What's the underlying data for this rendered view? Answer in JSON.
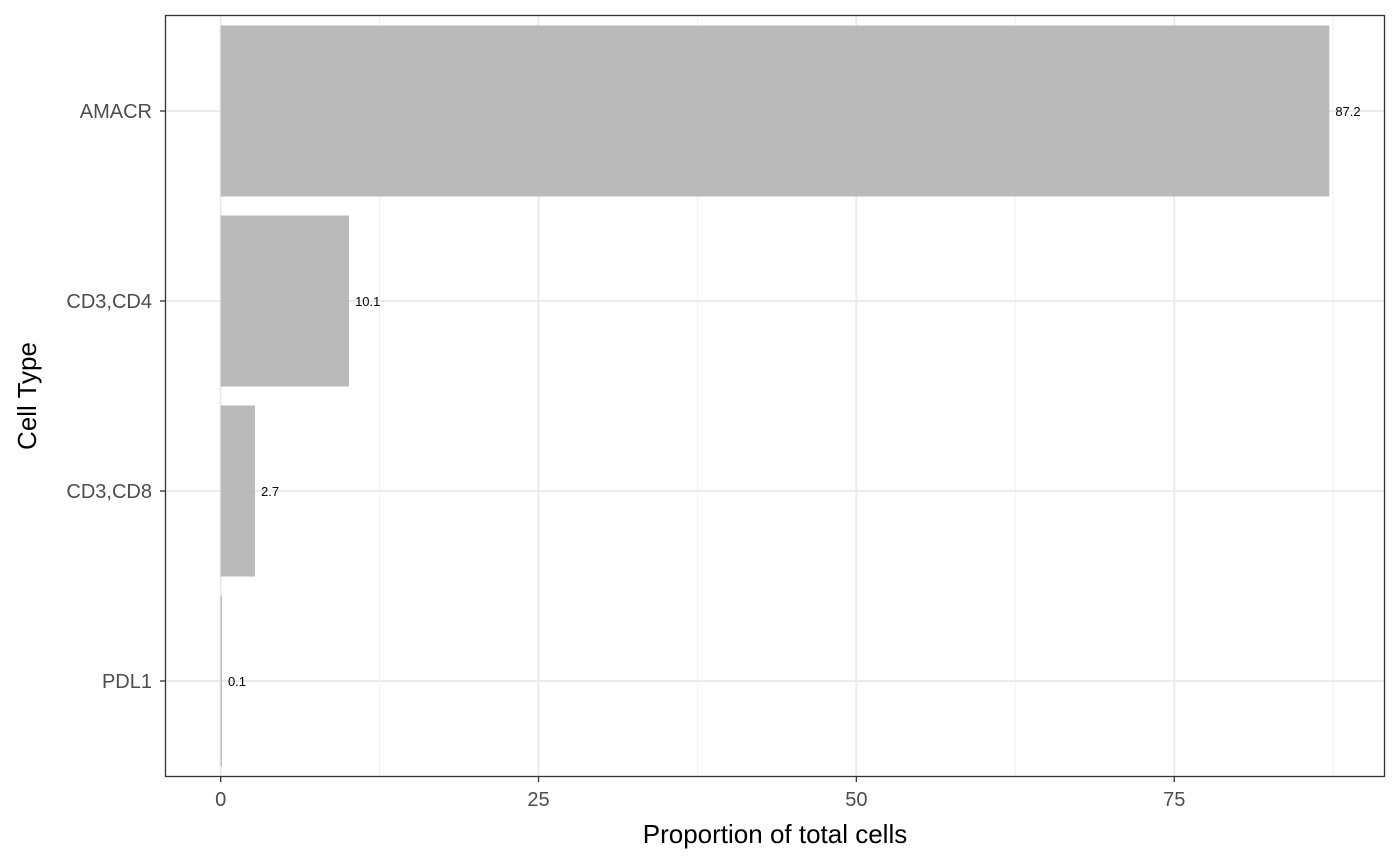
{
  "chart_data": {
    "type": "bar",
    "orientation": "horizontal",
    "title": "",
    "xlabel": "Proportion of total cells",
    "ylabel": "Cell Type",
    "categories": [
      "AMACR",
      "CD3,CD4",
      "CD3,CD8",
      "PDL1"
    ],
    "values": [
      87.2,
      10.1,
      2.7,
      0.1
    ],
    "data_labels": [
      "87.2",
      "10.1",
      "2.7",
      "0.1"
    ],
    "xlim": [
      -4.3,
      91.5
    ],
    "x_ticks": [
      0,
      25,
      50,
      75
    ],
    "x_tick_labels": [
      "0",
      "25",
      "50",
      "75"
    ],
    "grid": true,
    "bar_color": "#bababa",
    "grid_major_color": "#ebebeb",
    "grid_minor_color": "#f2f2f2",
    "panel_border_color": "#333333"
  }
}
